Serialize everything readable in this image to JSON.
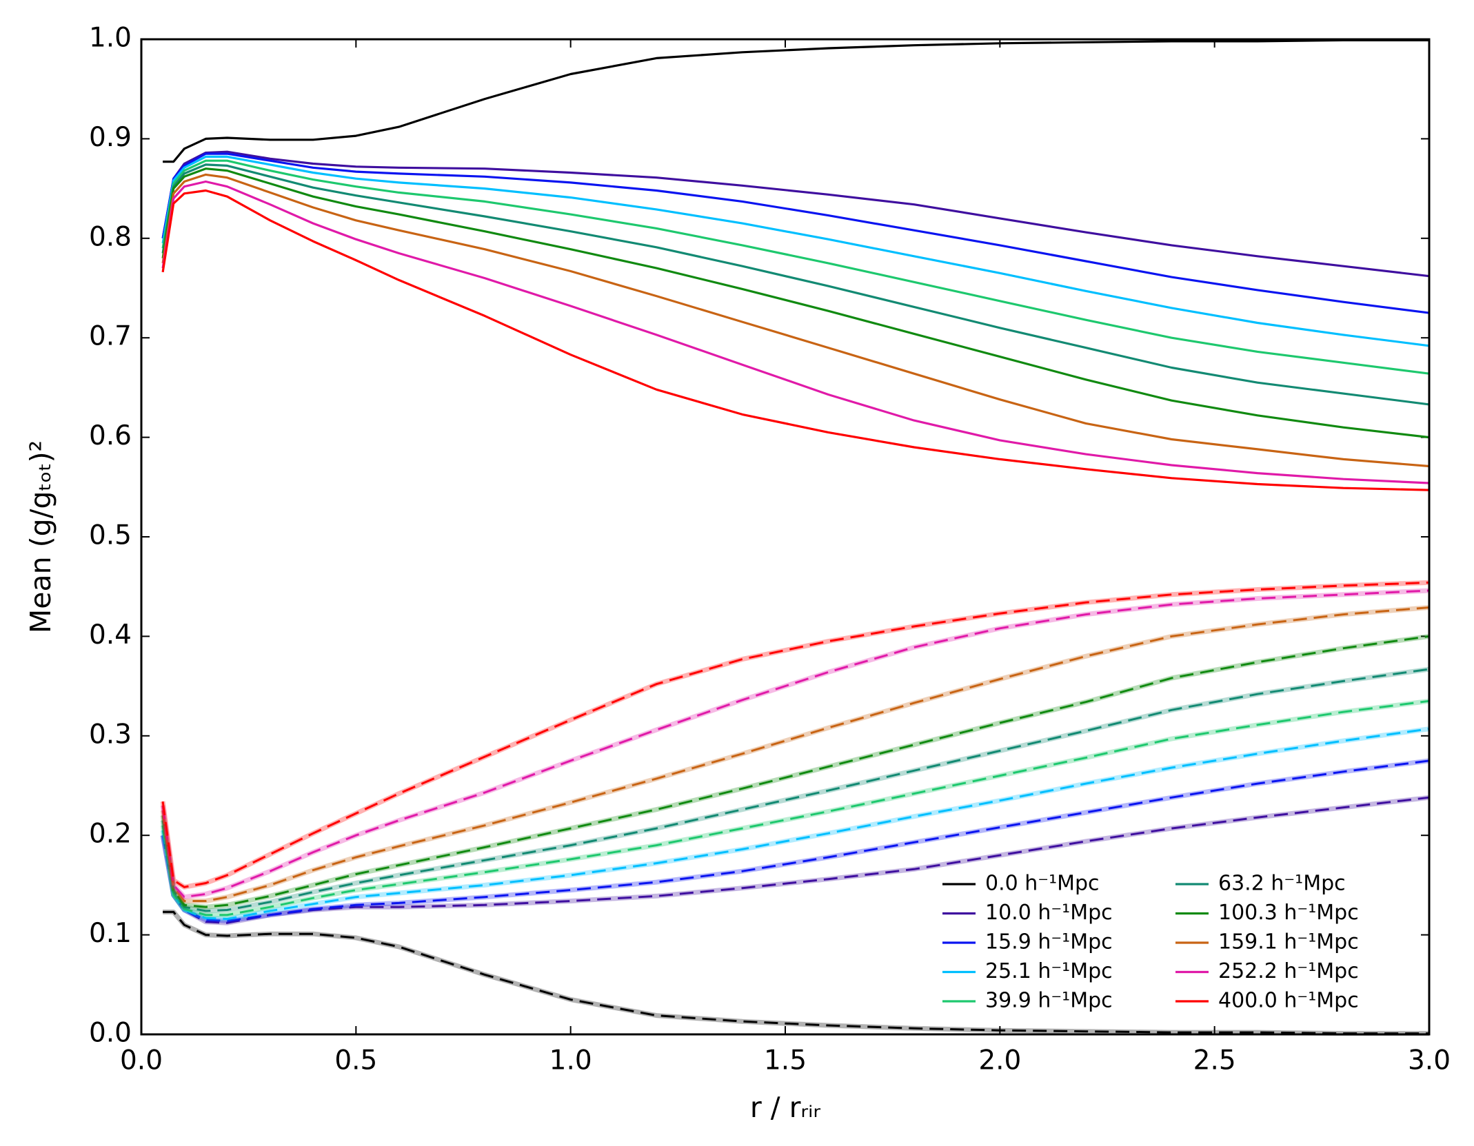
{
  "chart_data": {
    "type": "line",
    "xlabel": "r / rᵣᵢᵣ",
    "ylabel": "Mean (g/gₜₒₜ)²",
    "xlim": [
      0,
      3
    ],
    "ylim": [
      0,
      1
    ],
    "xticks": [
      {
        "value": 0,
        "label": "0.0"
      },
      0.5,
      {
        "value": 1,
        "label": "1.0"
      },
      1.5,
      {
        "value": 2,
        "label": "2.0"
      },
      2.5,
      {
        "value": 3,
        "label": "3.0"
      }
    ],
    "yticks": [
      {
        "value": 0,
        "label": "0.0"
      },
      0.1,
      0.2,
      0.3,
      0.4,
      0.5,
      0.6,
      0.7,
      0.8,
      0.9,
      {
        "value": 1,
        "label": "1.0"
      }
    ],
    "legend_loc": "lower right",
    "legend_ncol": 2,
    "x": [
      0.05,
      0.075,
      0.1,
      0.15,
      0.2,
      0.3,
      0.4,
      0.5,
      0.6,
      0.8,
      1.0,
      1.2,
      1.4,
      1.6,
      1.8,
      2.0,
      2.2,
      2.4,
      2.6,
      2.8,
      3.0
    ],
    "series": [
      {
        "name": "0.0 h⁻¹Mpc",
        "color": "#000000",
        "style": "solid",
        "values": [
          0.877,
          0.877,
          0.89,
          0.9,
          0.901,
          0.899,
          0.899,
          0.903,
          0.912,
          0.94,
          0.965,
          0.981,
          0.987,
          0.991,
          0.994,
          0.996,
          0.997,
          0.998,
          0.998,
          0.999,
          0.999
        ]
      },
      {
        "name": "10.0 h⁻¹Mpc",
        "color": "#3f0f9f",
        "style": "solid",
        "values": [
          0.8,
          0.86,
          0.875,
          0.886,
          0.887,
          0.88,
          0.875,
          0.872,
          0.871,
          0.87,
          0.866,
          0.861,
          0.853,
          0.844,
          0.834,
          0.82,
          0.806,
          0.793,
          0.782,
          0.772,
          0.762
        ]
      },
      {
        "name": "15.9 h⁻¹Mpc",
        "color": "#0a14f0",
        "style": "solid",
        "values": [
          0.8,
          0.86,
          0.873,
          0.885,
          0.885,
          0.878,
          0.871,
          0.867,
          0.865,
          0.862,
          0.856,
          0.848,
          0.837,
          0.823,
          0.808,
          0.793,
          0.777,
          0.761,
          0.748,
          0.736,
          0.725
        ]
      },
      {
        "name": "25.1 h⁻¹Mpc",
        "color": "#00bfff",
        "style": "solid",
        "values": [
          0.795,
          0.858,
          0.871,
          0.882,
          0.882,
          0.874,
          0.866,
          0.86,
          0.856,
          0.85,
          0.841,
          0.829,
          0.815,
          0.799,
          0.782,
          0.765,
          0.747,
          0.73,
          0.715,
          0.703,
          0.692
        ]
      },
      {
        "name": "39.9 h⁻¹Mpc",
        "color": "#1ec86e",
        "style": "solid",
        "values": [
          0.79,
          0.855,
          0.868,
          0.878,
          0.878,
          0.868,
          0.859,
          0.852,
          0.846,
          0.837,
          0.824,
          0.81,
          0.793,
          0.775,
          0.756,
          0.737,
          0.718,
          0.7,
          0.686,
          0.675,
          0.664
        ]
      },
      {
        "name": "63.2 h⁻¹Mpc",
        "color": "#138a73",
        "style": "solid",
        "values": [
          0.785,
          0.852,
          0.865,
          0.874,
          0.873,
          0.862,
          0.851,
          0.843,
          0.836,
          0.822,
          0.807,
          0.791,
          0.772,
          0.752,
          0.731,
          0.71,
          0.69,
          0.67,
          0.655,
          0.644,
          0.633
        ]
      },
      {
        "name": "100.3 h⁻¹Mpc",
        "color": "#118a11",
        "style": "solid",
        "values": [
          0.78,
          0.85,
          0.862,
          0.87,
          0.868,
          0.855,
          0.842,
          0.832,
          0.824,
          0.807,
          0.789,
          0.77,
          0.749,
          0.727,
          0.704,
          0.681,
          0.658,
          0.637,
          0.622,
          0.61,
          0.6
        ]
      },
      {
        "name": "159.1 h⁻¹Mpc",
        "color": "#c86414",
        "style": "solid",
        "values": [
          0.775,
          0.845,
          0.857,
          0.864,
          0.861,
          0.846,
          0.831,
          0.818,
          0.808,
          0.789,
          0.767,
          0.742,
          0.716,
          0.69,
          0.664,
          0.638,
          0.614,
          0.598,
          0.588,
          0.578,
          0.571
        ]
      },
      {
        "name": "252.2 h⁻¹Mpc",
        "color": "#e01aa8",
        "style": "solid",
        "values": [
          0.77,
          0.84,
          0.852,
          0.857,
          0.852,
          0.834,
          0.815,
          0.799,
          0.785,
          0.76,
          0.732,
          0.703,
          0.673,
          0.643,
          0.617,
          0.597,
          0.583,
          0.572,
          0.564,
          0.558,
          0.554
        ]
      },
      {
        "name": "400.0 h⁻¹Mpc",
        "color": "#ff0000",
        "style": "solid",
        "values": [
          0.766,
          0.835,
          0.845,
          0.848,
          0.842,
          0.818,
          0.797,
          0.778,
          0.758,
          0.722,
          0.683,
          0.648,
          0.623,
          0.605,
          0.59,
          0.578,
          0.568,
          0.559,
          0.553,
          0.549,
          0.547
        ]
      },
      {
        "color": "#000000",
        "style": "dashed",
        "values": [
          0.123,
          0.123,
          0.11,
          0.1,
          0.099,
          0.101,
          0.101,
          0.097,
          0.088,
          0.06,
          0.035,
          0.019,
          0.013,
          0.009,
          0.006,
          0.004,
          0.003,
          0.002,
          0.002,
          0.001,
          0.001
        ]
      },
      {
        "color": "#3f0f9f",
        "style": "dashed",
        "values": [
          0.2,
          0.14,
          0.125,
          0.113,
          0.112,
          0.12,
          0.125,
          0.128,
          0.128,
          0.13,
          0.134,
          0.139,
          0.147,
          0.156,
          0.166,
          0.18,
          0.194,
          0.207,
          0.218,
          0.228,
          0.238
        ]
      },
      {
        "color": "#0a14f0",
        "style": "dashed",
        "values": [
          0.2,
          0.14,
          0.125,
          0.115,
          0.114,
          0.12,
          0.126,
          0.13,
          0.132,
          0.138,
          0.145,
          0.153,
          0.164,
          0.178,
          0.193,
          0.208,
          0.223,
          0.238,
          0.252,
          0.264,
          0.275
        ]
      },
      {
        "color": "#00bfff",
        "style": "dashed",
        "values": [
          0.205,
          0.14,
          0.125,
          0.117,
          0.116,
          0.124,
          0.131,
          0.138,
          0.142,
          0.15,
          0.16,
          0.172,
          0.186,
          0.202,
          0.219,
          0.235,
          0.252,
          0.268,
          0.282,
          0.295,
          0.307
        ]
      },
      {
        "color": "#1ec86e",
        "style": "dashed",
        "values": [
          0.21,
          0.14,
          0.126,
          0.12,
          0.12,
          0.128,
          0.137,
          0.145,
          0.151,
          0.163,
          0.176,
          0.19,
          0.207,
          0.224,
          0.242,
          0.26,
          0.278,
          0.297,
          0.311,
          0.324,
          0.335
        ]
      },
      {
        "color": "#138a73",
        "style": "dashed",
        "values": [
          0.215,
          0.145,
          0.128,
          0.124,
          0.125,
          0.133,
          0.143,
          0.152,
          0.16,
          0.175,
          0.19,
          0.207,
          0.226,
          0.245,
          0.265,
          0.285,
          0.305,
          0.326,
          0.342,
          0.355,
          0.367
        ]
      },
      {
        "color": "#118a11",
        "style": "dashed",
        "values": [
          0.22,
          0.145,
          0.13,
          0.128,
          0.13,
          0.139,
          0.15,
          0.161,
          0.17,
          0.188,
          0.207,
          0.226,
          0.247,
          0.269,
          0.291,
          0.313,
          0.334,
          0.358,
          0.374,
          0.388,
          0.4
        ]
      },
      {
        "color": "#c86414",
        "style": "dashed",
        "values": [
          0.225,
          0.148,
          0.134,
          0.134,
          0.138,
          0.15,
          0.165,
          0.178,
          0.189,
          0.21,
          0.233,
          0.257,
          0.282,
          0.308,
          0.333,
          0.357,
          0.38,
          0.4,
          0.412,
          0.422,
          0.429
        ]
      },
      {
        "color": "#e01aa8",
        "style": "dashed",
        "values": [
          0.23,
          0.15,
          0.138,
          0.141,
          0.147,
          0.164,
          0.183,
          0.2,
          0.215,
          0.243,
          0.275,
          0.306,
          0.336,
          0.364,
          0.389,
          0.408,
          0.422,
          0.432,
          0.438,
          0.442,
          0.446
        ]
      },
      {
        "color": "#ff0000",
        "style": "dashed",
        "values": [
          0.234,
          0.155,
          0.148,
          0.152,
          0.16,
          0.181,
          0.202,
          0.222,
          0.242,
          0.279,
          0.316,
          0.352,
          0.377,
          0.395,
          0.41,
          0.423,
          0.434,
          0.442,
          0.447,
          0.451,
          0.454
        ]
      }
    ]
  }
}
